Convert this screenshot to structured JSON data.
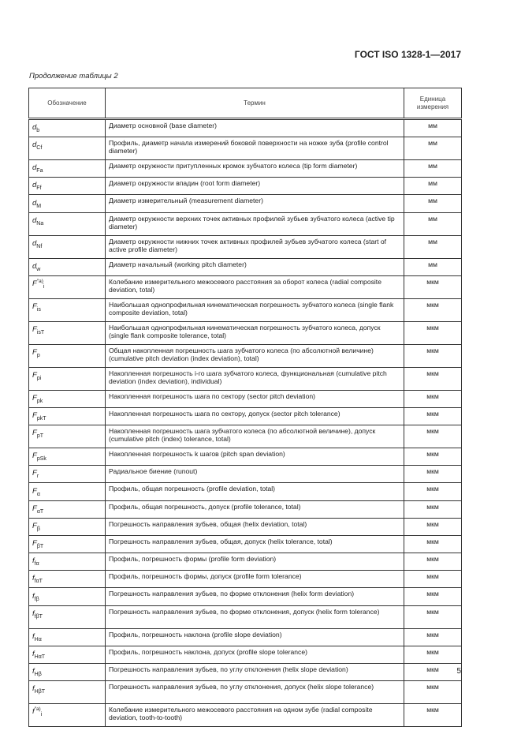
{
  "header": {
    "standard": "ГОСТ ISO 1328-1—2017"
  },
  "caption": "Продолжение таблицы 2",
  "table": {
    "columns": [
      "Обозначение",
      "Термин",
      "Единица измерения"
    ],
    "rows": [
      {
        "sym": "d",
        "sub": "b",
        "sup": "",
        "term": "Диаметр основной (base diameter)",
        "unit": "мм",
        "h": "s"
      },
      {
        "sym": "d",
        "sub": "Cf",
        "sup": "",
        "term": "Профиль, диаметр начала измерений боковой поверхности на ножке зуба (profile control diameter)",
        "unit": "мм",
        "h": "d"
      },
      {
        "sym": "d",
        "sub": "Fa",
        "sup": "",
        "term": "Диаметр окружности притупленных кромок зубчатого колеса (tip form diameter)",
        "unit": "мм",
        "h": "s"
      },
      {
        "sym": "d",
        "sub": "Ff",
        "sup": "",
        "term": "Диаметр окружности впадин (root form diameter)",
        "unit": "мм",
        "h": "s"
      },
      {
        "sym": "d",
        "sub": "M",
        "sup": "",
        "term": "Диаметр измерительный (measurement diameter)",
        "unit": "мм",
        "h": "s"
      },
      {
        "sym": "d",
        "sub": "Na",
        "sup": "",
        "term": "Диаметр окружности верхних точек активных профилей зубьев зубчатого колеса (active tip diameter)",
        "unit": "мм",
        "h": "d"
      },
      {
        "sym": "d",
        "sub": "Nf",
        "sup": "",
        "term": "Диаметр окружности нижних точек активных профилей зубьев зубчатого колеса (start of active profile diameter)",
        "unit": "мм",
        "h": "d"
      },
      {
        "sym": "d",
        "sub": "w",
        "sup": "",
        "term": "Диаметр начальный (working pitch diameter)",
        "unit": "мм",
        "h": "s"
      },
      {
        "sym": "F",
        "sub": "i",
        "sup": "″a)",
        "term": "Колебание измерительного межосевого расстояния за оборот колеса (radial composite deviation, total)",
        "unit": "мкм",
        "h": "d"
      },
      {
        "sym": "F",
        "sub": "is",
        "sup": "",
        "term": "Наибольшая однопрофильная кинематическая погрешность зубчатого колеса (single flank composite deviation, total)",
        "unit": "мкм",
        "h": "d"
      },
      {
        "sym": "F",
        "sub": "isT",
        "sup": "",
        "term": "Наибольшая однопрофильная кинематическая погрешность зубчатого колеса, допуск (single flank composite tolerance, total)",
        "unit": "мкм",
        "h": "d"
      },
      {
        "sym": "F",
        "sub": "p",
        "sup": "",
        "term": "Общая накопленная погрешность шага зубчатого колеса (по абсолютной величине) (cumulative pitch deviation (index deviation), total)",
        "unit": "мкм",
        "h": "d"
      },
      {
        "sym": "F",
        "sub": "pi",
        "sup": "",
        "term": "Накопленная погрешность i-го шага зубчатого колеса, функциональная (cumulative pitch deviation (index deviation), individual)",
        "unit": "мкм",
        "h": "d"
      },
      {
        "sym": "F",
        "sub": "pk",
        "sup": "",
        "term": "Накопленная погрешность шага по сектору (sector pitch deviation)",
        "unit": "мкм",
        "h": "s"
      },
      {
        "sym": "F",
        "sub": "pkT",
        "sup": "",
        "term": "Накопленная погрешность шага по сектору, допуск (sector pitch tolerance)",
        "unit": "мкм",
        "h": "s"
      },
      {
        "sym": "F",
        "sub": "pT",
        "sup": "",
        "term": "Накопленная погрешность шага зубчатого колеса (по абсолютной величине), допуск (cumulative pitch (index) tolerance, total)",
        "unit": "мкм",
        "h": "d"
      },
      {
        "sym": "F",
        "sub": "pSk",
        "sup": "",
        "term": "Накопленная погрешность k шагов (pitch span deviation)",
        "unit": "мкм",
        "h": "s"
      },
      {
        "sym": "F",
        "sub": "r",
        "sup": "",
        "term": "Радиальное биение (runout)",
        "unit": "мкм",
        "h": "s"
      },
      {
        "sym": "F",
        "sub": "α",
        "sup": "",
        "term": "Профиль, общая погрешность (profile deviation, total)",
        "unit": "мкм",
        "h": "s"
      },
      {
        "sym": "F",
        "sub": "αT",
        "sup": "",
        "term": "Профиль, общая погрешность, допуск (profile tolerance, total)",
        "unit": "мкм",
        "h": "s"
      },
      {
        "sym": "F",
        "sub": "β",
        "sup": "",
        "term": "Погрешность направления зубьев, общая (helix deviation, total)",
        "unit": "мкм",
        "h": "s"
      },
      {
        "sym": "F",
        "sub": "βT",
        "sup": "",
        "term": "Погрешность направления зубьев, общая, допуск (helix tolerance, total)",
        "unit": "мкм",
        "h": "s"
      },
      {
        "sym": "f",
        "sub": "fα",
        "sup": "",
        "term": "Профиль, погрешность формы (profile form deviation)",
        "unit": "мкм",
        "h": "s"
      },
      {
        "sym": "f",
        "sub": "fαT",
        "sup": "",
        "term": "Профиль, погрешность формы, допуск (profile form tolerance)",
        "unit": "мкм",
        "h": "s"
      },
      {
        "sym": "f",
        "sub": "fβ",
        "sup": "",
        "term": "Погрешность направления зубьев, по форме отклонения (helix form deviation)",
        "unit": "мкм",
        "h": "s"
      },
      {
        "sym": "f",
        "sub": "fβT",
        "sup": "",
        "term": "Погрешность направления зубьев, по форме отклонения, допуск (helix form tolerance)",
        "unit": "мкм",
        "h": "d"
      },
      {
        "sym": "f",
        "sub": "Hα",
        "sup": "",
        "term": "Профиль, погрешность наклона (profile slope deviation)",
        "unit": "мкм",
        "h": "s"
      },
      {
        "sym": "f",
        "sub": "HαT",
        "sup": "",
        "term": "Профиль, погрешность наклона, допуск (profile slope tolerance)",
        "unit": "мкм",
        "h": "s"
      },
      {
        "sym": "f",
        "sub": "Hβ",
        "sup": "",
        "term": "Погрешность направления зубьев, по углу отклонения (helix slope deviation)",
        "unit": "мкм",
        "h": "s"
      },
      {
        "sym": "f",
        "sub": "HβT",
        "sup": "",
        "term": "Погрешность направления зубьев, по углу отклонения, допуск (helix slope tolerance)",
        "unit": "мкм",
        "h": "d"
      },
      {
        "sym": "f",
        "sub": "i",
        "sup": "″a)",
        "term": "Колебание измерительного межосевого расстояния на одном зубе (radial composite deviation, tooth-to-tooth)",
        "unit": "мкм",
        "h": "d"
      }
    ]
  },
  "footer": {
    "page_number": "5"
  }
}
